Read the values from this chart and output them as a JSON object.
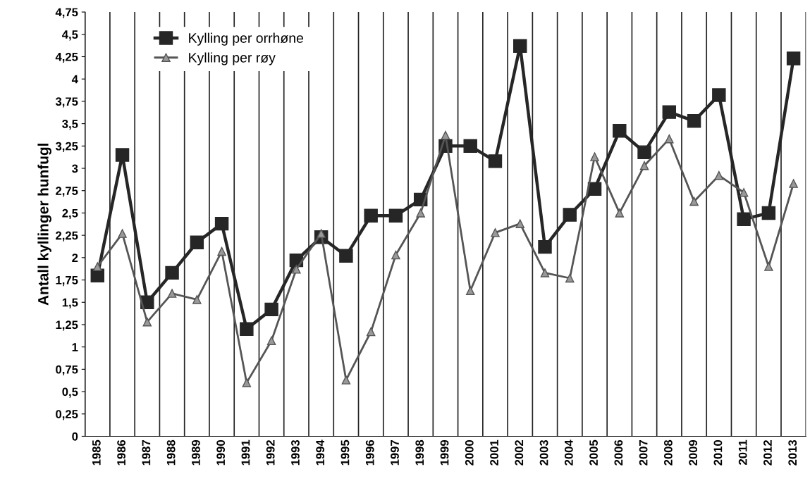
{
  "chart_data": {
    "type": "line",
    "ylabel": "Antall kyllinger hunfugl",
    "categories": [
      "1985",
      "1986",
      "1987",
      "1988",
      "1989",
      "1990",
      "1991",
      "1992",
      "1993",
      "1994",
      "1995",
      "1996",
      "1997",
      "1998",
      "1999",
      "2000",
      "2001",
      "2002",
      "2003",
      "2004",
      "2005",
      "2006",
      "2007",
      "2008",
      "2009",
      "2010",
      "2011",
      "2012",
      "2013"
    ],
    "series": [
      {
        "name": "Kylling per orrhøne",
        "color": "#262626",
        "marker": "square",
        "values": [
          1.8,
          3.15,
          1.5,
          1.83,
          2.17,
          2.38,
          1.2,
          1.42,
          1.97,
          2.23,
          2.02,
          2.47,
          2.47,
          2.65,
          3.25,
          3.25,
          3.08,
          4.37,
          2.12,
          2.48,
          2.77,
          3.42,
          3.18,
          3.63,
          3.53,
          3.82,
          2.43,
          2.5,
          4.23
        ]
      },
      {
        "name": "Kylling per røy",
        "color": "#555555",
        "marker": "triangle",
        "values": [
          1.9,
          2.27,
          1.28,
          1.6,
          1.53,
          2.07,
          0.6,
          1.07,
          1.87,
          2.27,
          0.63,
          1.17,
          2.03,
          2.5,
          3.37,
          1.63,
          2.28,
          2.38,
          1.83,
          1.77,
          3.13,
          2.5,
          3.03,
          3.33,
          2.63,
          2.92,
          2.73,
          1.9,
          2.83
        ]
      }
    ],
    "ylim": [
      0,
      4.75
    ],
    "yticks": [
      0,
      {
        "value": 0.25,
        "label": "0,25"
      },
      {
        "value": 0.5,
        "label": "0,5"
      },
      {
        "value": 0.75,
        "label": "0,75"
      },
      1,
      {
        "value": 1.25,
        "label": "1,25"
      },
      {
        "value": 1.5,
        "label": "1,5"
      },
      {
        "value": 1.75,
        "label": "1,75"
      },
      2,
      {
        "value": 2.25,
        "label": "2,25"
      },
      {
        "value": 2.5,
        "label": "2,5"
      },
      {
        "value": 2.75,
        "label": "2,75"
      },
      3,
      {
        "value": 3.25,
        "label": "3,25"
      },
      {
        "value": 3.5,
        "label": "3,5"
      },
      {
        "value": 3.75,
        "label": "3,75"
      },
      4,
      {
        "value": 4.25,
        "label": "4,25"
      },
      {
        "value": 4.5,
        "label": "4,5"
      },
      {
        "value": 4.75,
        "label": "4,75"
      }
    ],
    "grid": "x",
    "legend": "top left"
  }
}
